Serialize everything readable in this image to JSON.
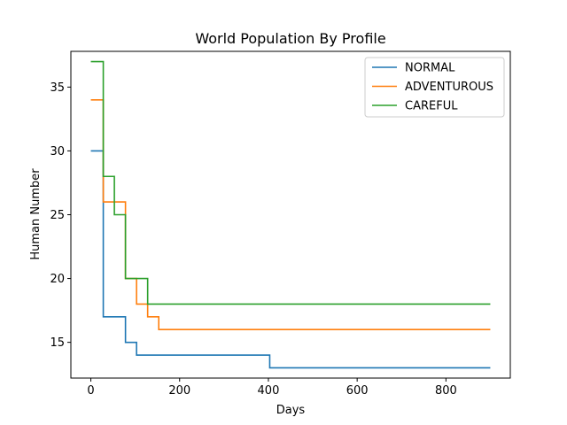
{
  "chart_data": {
    "type": "line",
    "step": "post",
    "title": "World Population By Profile",
    "xlabel": "Days",
    "ylabel": "Human Number",
    "xlim": [
      -45,
      945
    ],
    "ylim": [
      12.2,
      37.8
    ],
    "xticks": [
      0,
      200,
      400,
      600,
      800
    ],
    "yticks": [
      15,
      20,
      25,
      30,
      35
    ],
    "grid": false,
    "legend_position": "top-right",
    "series": [
      {
        "name": "NORMAL",
        "color": "#1f77b4",
        "points": [
          [
            0,
            30
          ],
          [
            28,
            30
          ],
          [
            28,
            17
          ],
          [
            78,
            17
          ],
          [
            78,
            15
          ],
          [
            103,
            15
          ],
          [
            103,
            14
          ],
          [
            403,
            14
          ],
          [
            403,
            13
          ],
          [
            900,
            13
          ]
        ]
      },
      {
        "name": "ADVENTUROUS",
        "color": "#ff7f0e",
        "points": [
          [
            0,
            34
          ],
          [
            28,
            34
          ],
          [
            28,
            26
          ],
          [
            78,
            26
          ],
          [
            78,
            20
          ],
          [
            103,
            20
          ],
          [
            103,
            18
          ],
          [
            128,
            18
          ],
          [
            128,
            17
          ],
          [
            153,
            17
          ],
          [
            153,
            16
          ],
          [
            900,
            16
          ]
        ]
      },
      {
        "name": "CAREFUL",
        "color": "#2ca02c",
        "points": [
          [
            0,
            37
          ],
          [
            28,
            37
          ],
          [
            28,
            28
          ],
          [
            53,
            28
          ],
          [
            53,
            25
          ],
          [
            78,
            25
          ],
          [
            78,
            20
          ],
          [
            128,
            20
          ],
          [
            128,
            18
          ],
          [
            900,
            18
          ]
        ]
      }
    ]
  }
}
